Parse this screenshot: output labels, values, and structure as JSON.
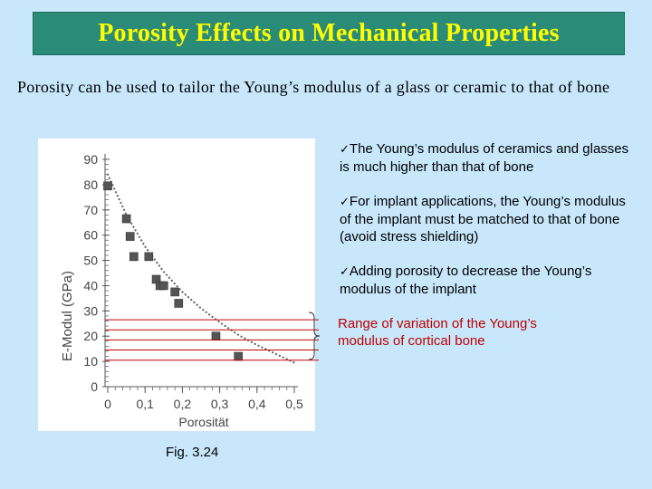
{
  "slide": {
    "title": "Porosity Effects on Mechanical Properties",
    "intro": "Porosity can be used to tailor the Young’s modulus of a glass or ceramic to that of bone",
    "bullets": [
      {
        "check": "✓",
        "text": "The Young’s modulus of ceramics and glasses is much higher than that of bone"
      },
      {
        "check": "✓",
        "text": "For implant applications, the Young’s modulus of the implant must be matched to that of bone (avoid stress shielding)"
      },
      {
        "check": "✓",
        "text": "Adding porosity to decrease the Young’s modulus of the implant"
      }
    ],
    "range_label": "Range of variation of the Young’s modulus of cortical bone",
    "caption": "Fig. 3.24"
  },
  "colors": {
    "background": "#c8e7fb",
    "title_bar": "#2a8c78",
    "title_text": "#ffff00",
    "range": "#c00000"
  },
  "chart_data": {
    "type": "scatter",
    "xlabel": "Porosität",
    "ylabel": "E-Modul (GPa)",
    "xlim": [
      0,
      0.5
    ],
    "ylim": [
      0,
      90
    ],
    "x_ticks": [
      0,
      0.1,
      0.2,
      0.3,
      0.4,
      0.5
    ],
    "x_tick_labels": [
      "0",
      "0,1",
      "0,2",
      "0,3",
      "0,4",
      "0,5"
    ],
    "y_ticks": [
      0,
      10,
      20,
      30,
      40,
      50,
      60,
      70,
      80,
      90
    ],
    "y_tick_labels": [
      "0",
      "10",
      "20",
      "30",
      "40",
      "50",
      "60",
      "70",
      "80",
      "90"
    ],
    "points": [
      {
        "x": 0.0,
        "y": 79.5
      },
      {
        "x": 0.05,
        "y": 66.5
      },
      {
        "x": 0.06,
        "y": 59.5
      },
      {
        "x": 0.07,
        "y": 51.5
      },
      {
        "x": 0.11,
        "y": 51.5
      },
      {
        "x": 0.13,
        "y": 42.5
      },
      {
        "x": 0.14,
        "y": 40.0
      },
      {
        "x": 0.15,
        "y": 40.0
      },
      {
        "x": 0.18,
        "y": 37.5
      },
      {
        "x": 0.19,
        "y": 33.0
      },
      {
        "x": 0.29,
        "y": 20.0
      },
      {
        "x": 0.35,
        "y": 12.0
      }
    ],
    "fit_curve": {
      "style": "dotted",
      "x": [
        0.0,
        0.05,
        0.1,
        0.15,
        0.2,
        0.25,
        0.3,
        0.35,
        0.4,
        0.45,
        0.5
      ],
      "y": [
        84.0,
        68.0,
        55.5,
        45.5,
        37.5,
        31.0,
        25.5,
        20.5,
        16.5,
        13.0,
        9.5
      ]
    },
    "range_lines_y": [
      10.5,
      14.5,
      18.5,
      22.5,
      26.5
    ]
  }
}
